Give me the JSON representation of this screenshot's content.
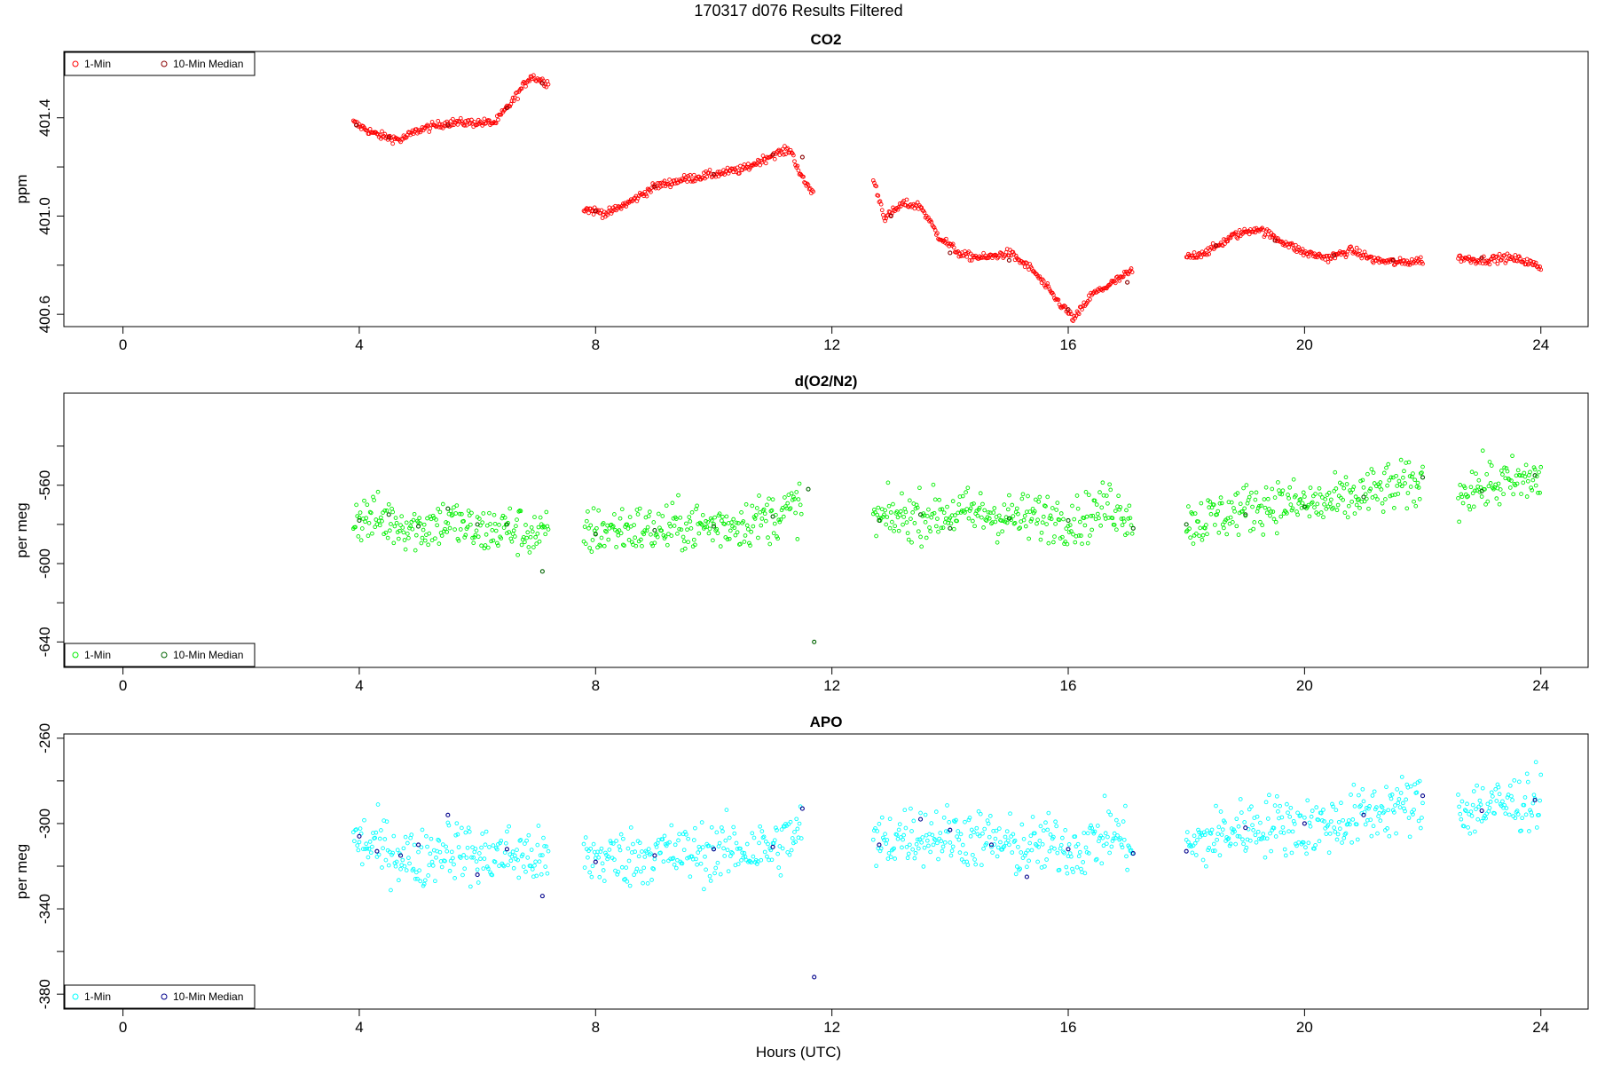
{
  "figure": {
    "title": "170317   d076   Results Filtered",
    "xlabel": "Hours (UTC)"
  },
  "chart_data": [
    {
      "type": "scatter",
      "title": "CO2",
      "xlabel": "",
      "ylabel": "ppm",
      "xlim": [
        -1.0,
        24.8
      ],
      "ylim": [
        400.55,
        401.67
      ],
      "xticks": [
        0,
        4,
        8,
        12,
        16,
        20,
        24
      ],
      "yticks": [
        400.6,
        400.8,
        401.0,
        401.2,
        401.4
      ],
      "yticklabels": [
        "400.6",
        "",
        "401.0",
        "",
        "401.4"
      ],
      "legend": {
        "position": "top-left",
        "items": [
          "1-Min",
          "10-Min Median"
        ]
      },
      "colors": {
        "one_min": "#ff0000",
        "median": "#8b0000"
      },
      "series": [
        {
          "name": "1-Min",
          "marker": "circle",
          "segments": [
            {
              "x": [
                3.9,
                4.3,
                4.7,
                5.0,
                5.5,
                6.0,
                6.3,
                6.6,
                6.9,
                7.2
              ],
              "y": [
                401.38,
                401.33,
                401.31,
                401.35,
                401.38,
                401.38,
                401.38,
                401.47,
                401.57,
                401.54
              ]
            },
            {
              "x": [
                7.8,
                8.2,
                8.6,
                9.0,
                9.5,
                10.0,
                10.5,
                11.0,
                11.3,
                11.5,
                11.7
              ],
              "y": [
                401.03,
                401.01,
                401.06,
                401.12,
                401.15,
                401.17,
                401.19,
                401.25,
                401.27,
                401.15,
                401.09
              ]
            },
            {
              "x": [
                12.7,
                12.9,
                13.2,
                13.5,
                13.8,
                14.2,
                14.6,
                15.0,
                15.4,
                15.8,
                16.1,
                16.4,
                16.7,
                17.1
              ],
              "y": [
                401.15,
                400.99,
                401.05,
                401.04,
                400.92,
                400.84,
                400.83,
                400.85,
                400.78,
                400.66,
                400.58,
                400.68,
                400.72,
                400.78
              ]
            },
            {
              "x": [
                18.0,
                18.4,
                18.8,
                19.2,
                19.6,
                20.0,
                20.4,
                20.8,
                21.2,
                21.6,
                22.0
              ],
              "y": [
                400.83,
                400.86,
                400.92,
                400.95,
                400.9,
                400.85,
                400.83,
                400.86,
                400.82,
                400.81,
                400.82
              ]
            },
            {
              "x": [
                22.6,
                23.0,
                23.4,
                23.7,
                24.0
              ],
              "y": [
                400.83,
                400.82,
                400.83,
                400.82,
                400.79
              ]
            }
          ]
        },
        {
          "name": "10-Min Median",
          "marker": "circle",
          "x": [
            3.95,
            4.5,
            5.5,
            6.5,
            7.1,
            8.0,
            9.0,
            10.0,
            11.0,
            11.5,
            13.0,
            14.0,
            15.0,
            16.0,
            17.0,
            18.5,
            19.5,
            20.5,
            21.5,
            23.0
          ],
          "y": [
            401.37,
            401.32,
            401.37,
            401.44,
            401.54,
            401.02,
            401.12,
            401.17,
            401.25,
            401.24,
            401.0,
            400.85,
            400.82,
            400.62,
            400.73,
            400.88,
            400.9,
            400.84,
            400.82,
            400.83
          ]
        }
      ]
    },
    {
      "type": "scatter",
      "title": "d(O2/N2)",
      "xlabel": "",
      "ylabel": "per meg",
      "xlim": [
        -1.0,
        24.8
      ],
      "ylim": [
        -653,
        -513
      ],
      "xticks": [
        0,
        4,
        8,
        12,
        16,
        20,
        24
      ],
      "yticks": [
        -640,
        -620,
        -600,
        -580,
        -560,
        -540
      ],
      "yticklabels": [
        "-640",
        "",
        "-600",
        "",
        "-560",
        ""
      ],
      "legend": {
        "position": "bottom-left",
        "items": [
          "1-Min",
          "10-Min Median"
        ]
      },
      "colors": {
        "one_min": "#00ee00",
        "median": "#006400"
      },
      "series": [
        {
          "name": "1-Min",
          "marker": "circle",
          "segments": [
            {
              "x": [
                3.9,
                4.5,
                5.0,
                5.5,
                6.0,
                6.5,
                7.0,
                7.2
              ],
              "y": [
                -576,
                -578,
                -582,
                -578,
                -584,
                -582,
                -585,
                -586
              ]
            },
            {
              "x": [
                7.8,
                8.5,
                9.0,
                9.5,
                10.0,
                10.5,
                11.0,
                11.5
              ],
              "y": [
                -584,
                -582,
                -583,
                -581,
                -581,
                -579,
                -576,
                -570
              ]
            },
            {
              "x": [
                12.7,
                13.2,
                13.7,
                14.2,
                14.7,
                15.2,
                15.7,
                16.2,
                16.7,
                17.1
              ],
              "y": [
                -578,
                -576,
                -575,
                -574,
                -575,
                -577,
                -576,
                -578,
                -570,
                -576
              ]
            },
            {
              "x": [
                18.0,
                18.5,
                19.0,
                19.5,
                20.0,
                20.5,
                21.0,
                21.5,
                22.0
              ],
              "y": [
                -580,
                -576,
                -572,
                -569,
                -570,
                -569,
                -565,
                -561,
                -560
              ]
            },
            {
              "x": [
                22.6,
                23.0,
                23.5,
                24.0
              ],
              "y": [
                -563,
                -560,
                -559,
                -556
              ]
            }
          ]
        },
        {
          "name": "10-Min Median",
          "marker": "circle",
          "x": [
            4.0,
            4.5,
            5.0,
            5.5,
            6.0,
            6.5,
            7.1,
            8.0,
            9.0,
            10.0,
            11.0,
            11.6,
            11.7,
            12.8,
            13.5,
            14.0,
            15.0,
            16.0,
            17.1,
            18.0,
            19.0,
            20.0,
            21.0,
            22.0,
            23.0,
            23.9
          ],
          "y": [
            -578,
            -575,
            -581,
            -572,
            -580,
            -580,
            -604,
            -585,
            -583,
            -581,
            -576,
            -562,
            -640,
            -578,
            -575,
            -582,
            -577,
            -578,
            -582,
            -580,
            -575,
            -571,
            -566,
            -556,
            -563,
            -555
          ]
        }
      ]
    },
    {
      "type": "scatter",
      "title": "APO",
      "xlabel": "Hours (UTC)",
      "ylabel": "per meg",
      "xlim": [
        -1.0,
        24.8
      ],
      "ylim": [
        -387,
        -258
      ],
      "xticks": [
        0,
        4,
        8,
        12,
        16,
        20,
        24
      ],
      "yticks": [
        -380,
        -360,
        -340,
        -320,
        -300,
        -280,
        -260
      ],
      "yticklabels": [
        "-380",
        "",
        "-340",
        "",
        "-300",
        "",
        "-260"
      ],
      "legend": {
        "position": "bottom-left",
        "items": [
          "1-Min",
          "10-Min Median"
        ]
      },
      "colors": {
        "one_min": "#00ffff",
        "median": "#00008b"
      },
      "series": [
        {
          "name": "1-Min",
          "marker": "circle",
          "segments": [
            {
              "x": [
                3.9,
                4.5,
                5.0,
                5.5,
                6.0,
                6.5,
                7.0,
                7.2
              ],
              "y": [
                -308,
                -312,
                -318,
                -310,
                -316,
                -314,
                -316,
                -318
              ]
            },
            {
              "x": [
                7.8,
                8.5,
                9.0,
                9.5,
                10.0,
                10.5,
                11.0,
                11.5
              ],
              "y": [
                -316,
                -316,
                -314,
                -314,
                -313,
                -312,
                -312,
                -303
              ]
            },
            {
              "x": [
                12.7,
                13.2,
                13.7,
                14.2,
                14.7,
                15.2,
                15.7,
                16.2,
                16.7,
                17.1
              ],
              "y": [
                -310,
                -305,
                -305,
                -306,
                -308,
                -312,
                -310,
                -312,
                -304,
                -310
              ]
            },
            {
              "x": [
                18.0,
                18.5,
                19.0,
                19.5,
                20.0,
                20.5,
                21.0,
                21.5,
                22.0
              ],
              "y": [
                -312,
                -306,
                -302,
                -300,
                -302,
                -300,
                -296,
                -292,
                -291
              ]
            },
            {
              "x": [
                22.6,
                23.0,
                23.5,
                24.0
              ],
              "y": [
                -294,
                -292,
                -291,
                -288
              ]
            }
          ]
        },
        {
          "name": "10-Min Median",
          "marker": "circle",
          "x": [
            4.0,
            4.3,
            4.7,
            5.0,
            5.5,
            6.0,
            6.5,
            7.1,
            8.0,
            9.0,
            10.0,
            11.0,
            11.5,
            11.7,
            12.8,
            13.5,
            14.0,
            14.7,
            15.3,
            16.0,
            17.1,
            18.0,
            19.0,
            20.0,
            21.0,
            22.0,
            23.0,
            23.9
          ],
          "y": [
            -306,
            -313,
            -315,
            -310,
            -296,
            -324,
            -312,
            -334,
            -318,
            -315,
            -312,
            -311,
            -293,
            -372,
            -310,
            -298,
            -303,
            -310,
            -325,
            -312,
            -314,
            -313,
            -302,
            -300,
            -296,
            -287,
            -294,
            -289
          ]
        }
      ]
    }
  ]
}
